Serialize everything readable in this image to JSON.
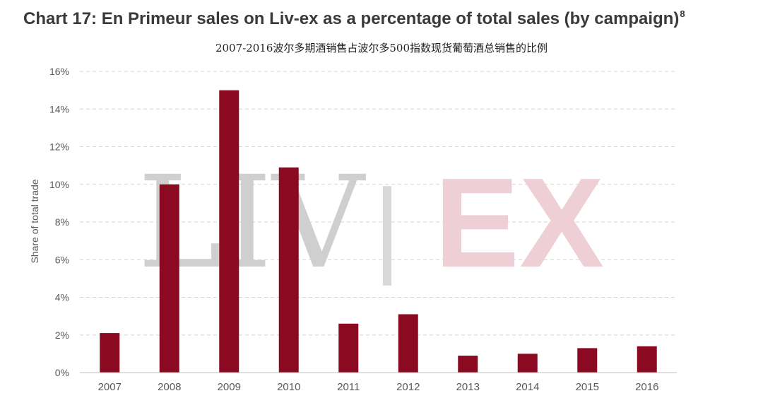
{
  "header": {
    "title": "Chart 17: En Primeur sales on Liv-ex as a percentage of total sales (by campaign)",
    "title_footnote": "8",
    "subtitle": "2007-2016波尔多期酒销售占波尔多500指数现货葡萄酒总销售的比例"
  },
  "watermark": {
    "left_text": "LIV",
    "separator": "|",
    "right_text": "EX"
  },
  "colors": {
    "bar": "#8b0a22",
    "grid": "#d6d6d6",
    "axis_text": "#595959",
    "watermark_grey": "#cfcfcf",
    "watermark_pink": "#eecfd6"
  },
  "chart_data": {
    "type": "bar",
    "title": "Chart 17: En Primeur sales on Liv-ex as a percentage of total sales (by campaign)",
    "xlabel": "",
    "ylabel": "Share of total trade",
    "categories": [
      "2007",
      "2008",
      "2009",
      "2010",
      "2011",
      "2012",
      "2013",
      "2014",
      "2015",
      "2016"
    ],
    "values": [
      2.1,
      10.0,
      15.0,
      10.9,
      2.6,
      3.1,
      0.9,
      1.0,
      1.3,
      1.4
    ],
    "ylim": [
      0,
      16
    ],
    "yticks": [
      0,
      2,
      4,
      6,
      8,
      10,
      12,
      14,
      16
    ],
    "ytick_labels": [
      "0%",
      "2%",
      "4%",
      "6%",
      "8%",
      "10%",
      "12%",
      "14%",
      "16%"
    ],
    "grid": true,
    "legend": "none"
  }
}
